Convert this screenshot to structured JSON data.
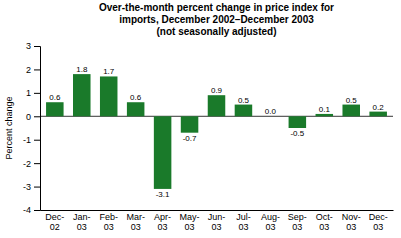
{
  "chart_data": {
    "type": "bar",
    "title": "Over-the-month percent change in price index for\nimports, December 2002–December 2003\n(not seasonally adjusted)",
    "ylabel": "Percent change",
    "categories": [
      "Dec-\n02",
      "Jan-\n03",
      "Feb-\n03",
      "Mar-\n03",
      "Apr-\n03",
      "May-\n03",
      "Jun-\n03",
      "Jul-\n03",
      "Aug-\n03",
      "Sep-\n03",
      "Oct-\n03",
      "Nov-\n03",
      "Dec-\n03"
    ],
    "values": [
      0.6,
      1.8,
      1.7,
      0.6,
      -3.1,
      -0.7,
      0.9,
      0.5,
      0.0,
      -0.5,
      0.1,
      0.5,
      0.2
    ],
    "value_labels": [
      "0.6",
      "1.8",
      "1.7",
      "0.6",
      "-3.1",
      "-0.7",
      "0.9",
      "0.5",
      "0.0",
      "-0.5",
      "0.1",
      "0.5",
      "0.2"
    ],
    "data_labels": true,
    "color": "#1a7a2a",
    "ylim": [
      -4,
      3
    ],
    "yticks": [
      -4,
      -3,
      -2,
      -1,
      0,
      1,
      2,
      3
    ],
    "grid": false
  }
}
